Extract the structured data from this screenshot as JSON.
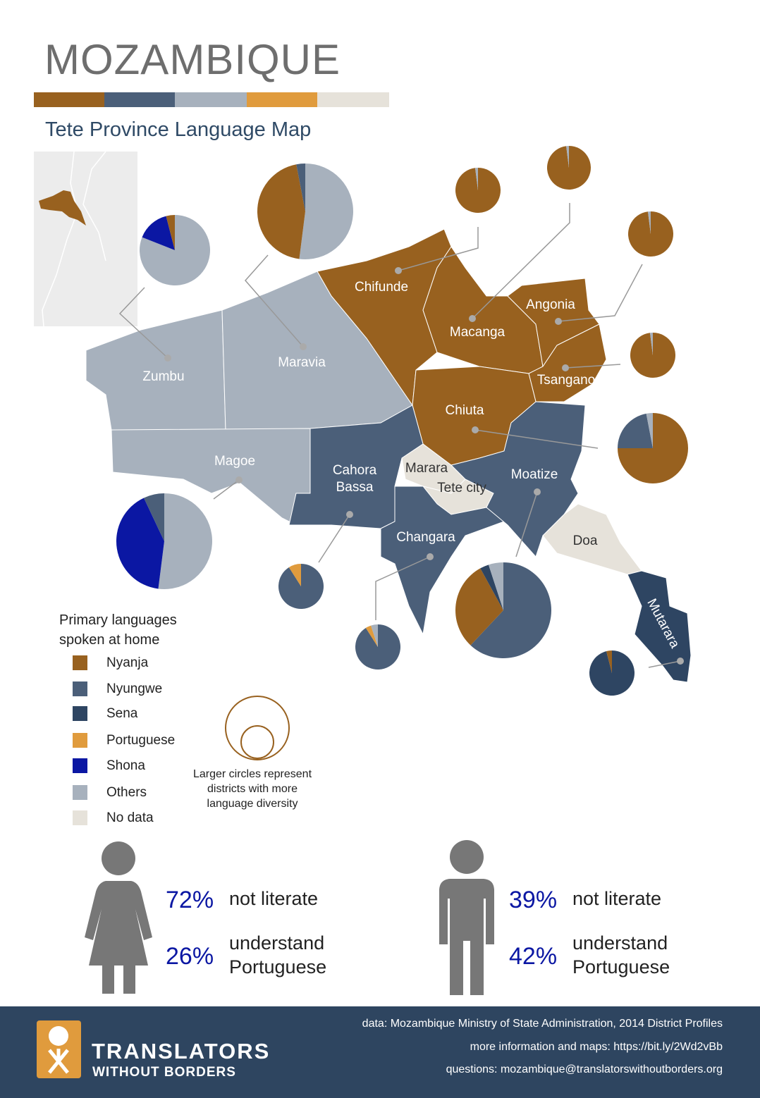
{
  "header": {
    "title": "MOZAMBIQUE",
    "subtitle": "Tete Province Language Map"
  },
  "legend": {
    "title": "Primary languages spoken at home",
    "items": [
      {
        "label": "Nyanja",
        "color": "#98611f"
      },
      {
        "label": "Nyungwe",
        "color": "#4b5f79"
      },
      {
        "label": "Sena",
        "color": "#2e4562"
      },
      {
        "label": "Portuguese",
        "color": "#e09b3d"
      },
      {
        "label": "Shona",
        "color": "#0b17a3"
      },
      {
        "label": "Others",
        "color": "#a7b1bd"
      },
      {
        "label": "No data",
        "color": "#e6e2da"
      }
    ],
    "size_note": "Larger circles represent districts with more language diversity"
  },
  "districts": [
    {
      "label": "Zumbu",
      "pie": [
        {
          "language": "Others",
          "value": 81
        },
        {
          "language": "Shona",
          "value": 15
        },
        {
          "language": "Nyanja",
          "value": 4
        }
      ]
    },
    {
      "label": "Maravia",
      "pie": [
        {
          "language": "Others",
          "value": 52
        },
        {
          "language": "Nyanja",
          "value": 45
        },
        {
          "language": "Nyungwe",
          "value": 3
        }
      ]
    },
    {
      "label": "Chifunde",
      "pie": [
        {
          "language": "Nyanja",
          "value": 98
        },
        {
          "language": "Others",
          "value": 2
        }
      ]
    },
    {
      "label": "Macanga",
      "pie": [
        {
          "language": "Nyanja",
          "value": 98
        },
        {
          "language": "Others",
          "value": 2
        }
      ]
    },
    {
      "label": "Angonia",
      "pie": [
        {
          "language": "Nyanja",
          "value": 98
        },
        {
          "language": "Others",
          "value": 2
        }
      ]
    },
    {
      "label": "Tsangano",
      "pie": [
        {
          "language": "Nyanja",
          "value": 98
        },
        {
          "language": "Others",
          "value": 2
        }
      ]
    },
    {
      "label": "Chiuta",
      "pie": [
        {
          "language": "Nyanja",
          "value": 75
        },
        {
          "language": "Nyungwe",
          "value": 22
        },
        {
          "language": "Others",
          "value": 3
        }
      ]
    },
    {
      "label": "Magoe",
      "pie": [
        {
          "language": "Others",
          "value": 52
        },
        {
          "language": "Shona",
          "value": 41
        },
        {
          "language": "Nyungwe",
          "value": 7
        }
      ]
    },
    {
      "label": "Cahora Bassa",
      "pie": [
        {
          "language": "Nyungwe",
          "value": 91
        },
        {
          "language": "Portuguese",
          "value": 9
        }
      ]
    },
    {
      "label": "Changara",
      "pie": [
        {
          "language": "Nyungwe",
          "value": 91
        },
        {
          "language": "Portuguese",
          "value": 4
        },
        {
          "language": "Others",
          "value": 5
        }
      ]
    },
    {
      "label": "Moatize",
      "pie": [
        {
          "language": "Nyungwe",
          "value": 62
        },
        {
          "language": "Nyanja",
          "value": 30
        },
        {
          "language": "Sena",
          "value": 3
        },
        {
          "language": "Others",
          "value": 5
        }
      ]
    },
    {
      "label": "Mutarara",
      "pie": [
        {
          "language": "Sena",
          "value": 96
        },
        {
          "language": "Nyanja",
          "value": 4
        }
      ]
    },
    {
      "label": "Marara"
    },
    {
      "label": "Tete city"
    },
    {
      "label": "Doa"
    }
  ],
  "literacy": [
    {
      "rows": [
        {
          "value": "72%",
          "text": "not literate"
        },
        {
          "value": "26%",
          "text": "understand Portuguese"
        }
      ]
    },
    {
      "rows": [
        {
          "value": "39%",
          "text": "not literate"
        },
        {
          "value": "42%",
          "text": "understand Portuguese"
        }
      ]
    }
  ],
  "footer": {
    "org": "TRANSLATORS",
    "org_sub": "WITHOUT BORDERS",
    "lines": [
      "data: Mozambique Ministry of State Administration, 2014 District Profiles",
      "more information and maps: https://bit.ly/2Wd2vBb",
      "questions: mozambique@translatorswithoutborders.org"
    ]
  }
}
